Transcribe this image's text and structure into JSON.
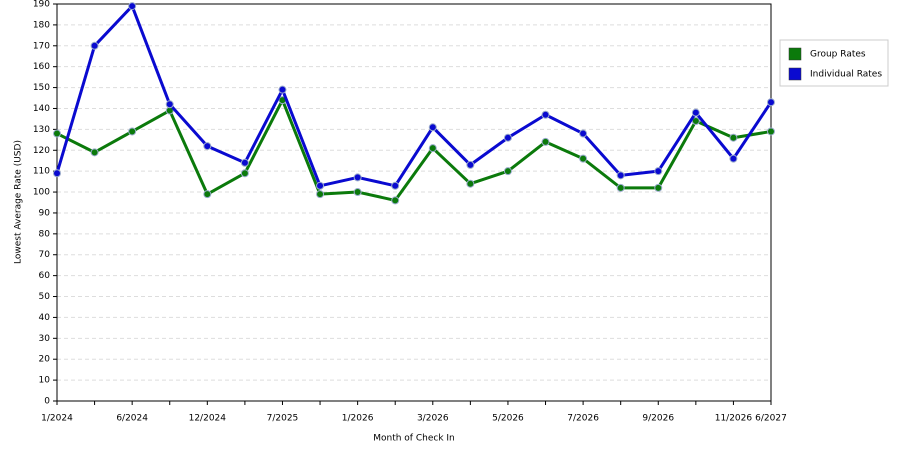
{
  "chart_data": {
    "type": "line",
    "x_label": "Month of Check In",
    "y_label": "Lowest Average Rate (USD)",
    "categories": [
      "1/2024",
      null,
      "6/2024",
      null,
      "12/2024",
      null,
      "7/2025",
      null,
      "1/2026",
      null,
      "3/2026",
      null,
      "5/2026",
      null,
      "7/2026",
      null,
      "9/2026",
      null,
      "11/2026",
      "6/2027"
    ],
    "series": [
      {
        "name": "Group Rates",
        "color": "#0b7a0b",
        "values": [
          128,
          119,
          129,
          139,
          99,
          109,
          144,
          99,
          100,
          96,
          121,
          104,
          110,
          124,
          116,
          102,
          102,
          134,
          126,
          129
        ]
      },
      {
        "name": "Individual Rates",
        "color": "#0a0ad0",
        "values": [
          109,
          170,
          189,
          142,
          122,
          114,
          149,
          103,
          107,
          103,
          131,
          113,
          126,
          137,
          128,
          108,
          110,
          138,
          116,
          143
        ]
      }
    ],
    "ylim": [
      0,
      190
    ],
    "yticks": [
      0,
      10,
      20,
      30,
      40,
      50,
      60,
      70,
      80,
      90,
      100,
      110,
      120,
      130,
      140,
      150,
      160,
      170,
      180,
      190
    ],
    "grid": true,
    "legend": "right"
  }
}
